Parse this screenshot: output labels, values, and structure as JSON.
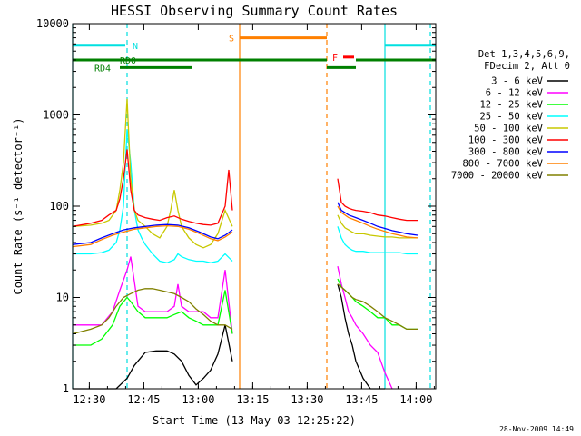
{
  "chart_data": {
    "type": "line",
    "title": "HESSI Observing Summary Count Rates",
    "xlabel": "Start Time (13-May-03 12:25:22)",
    "ylabel": "Count Rate (s⁻¹ detector⁻¹)",
    "x_unit": "minutes since 12:25:22",
    "xlim": [
      0,
      100
    ],
    "ylim": [
      1,
      10000
    ],
    "y_scale": "log",
    "x_ticks": [
      {
        "label": "12:30",
        "x": 4.6
      },
      {
        "label": "12:45",
        "x": 19.6
      },
      {
        "label": "13:00",
        "x": 34.6
      },
      {
        "label": "13:15",
        "x": 49.6
      },
      {
        "label": "13:30",
        "x": 64.6
      },
      {
        "label": "13:45",
        "x": 79.6
      },
      {
        "label": "14:00",
        "x": 94.6
      }
    ],
    "y_ticks": [
      {
        "label": "1",
        "y": 1
      },
      {
        "label": "10",
        "y": 10
      },
      {
        "label": "100",
        "y": 100
      },
      {
        "label": "1000",
        "y": 1000
      },
      {
        "label": "10000",
        "y": 10000
      }
    ],
    "legend": {
      "header": [
        "Det 1,3,4,5,6,9,",
        "FDecim 2, Att 0"
      ],
      "placement": "right"
    },
    "series": [
      {
        "name": "3 - 6 keV",
        "color": "#000000",
        "segments": [
          {
            "x": [
              0,
              8,
              12,
              15,
              17,
              20,
              23,
              26,
              28,
              30,
              32,
              34,
              36,
              38,
              40,
              42,
              44
            ],
            "y": [
              0.5,
              0.5,
              0.8,
              1.3,
              1.8,
              2.5,
              2.6,
              2.6,
              2.4,
              2.0,
              1.4,
              1.1,
              1.3,
              1.6,
              2.4,
              5,
              2
            ]
          },
          {
            "x": [
              73,
              74,
              75,
              76,
              77,
              78,
              80,
              82,
              84,
              86
            ],
            "y": [
              14,
              10,
              6,
              4,
              3,
              2,
              1.3,
              0.8,
              0.5,
              0.5
            ]
          }
        ]
      },
      {
        "name": "6 - 12 keV",
        "color": "#ff00ff",
        "segments": [
          {
            "x": [
              0,
              5,
              8,
              11,
              13,
              15,
              16,
              18,
              20,
              22,
              24,
              26,
              28,
              29,
              30,
              32,
              34,
              36,
              38,
              40,
              42,
              44
            ],
            "y": [
              5,
              5,
              5,
              7,
              12,
              20,
              28,
              8,
              7,
              7,
              7,
              7,
              8,
              14,
              8,
              7,
              7,
              7,
              6,
              6,
              20,
              4
            ]
          },
          {
            "x": [
              73,
              74,
              75,
              76,
              77,
              78,
              80,
              82,
              84,
              86,
              88
            ],
            "y": [
              22,
              14,
              10,
              7,
              6,
              5,
              4,
              3,
              2.5,
              1.5,
              0.8
            ]
          }
        ]
      },
      {
        "name": "12 - 25 keV",
        "color": "#00ff00",
        "segments": [
          {
            "x": [
              0,
              5,
              8,
              11,
              13,
              15,
              16,
              18,
              20,
              22,
              24,
              26,
              28,
              30,
              32,
              34,
              36,
              38,
              40,
              42,
              44
            ],
            "y": [
              3,
              3,
              3.5,
              5,
              8,
              10,
              9,
              7,
              6,
              6,
              6,
              6,
              6.5,
              7,
              6,
              5.5,
              5,
              5,
              5,
              12,
              4
            ]
          },
          {
            "x": [
              73,
              74,
              75,
              76,
              77,
              78,
              80,
              82,
              84,
              86,
              88,
              90,
              92,
              95
            ],
            "y": [
              16,
              13,
              12,
              11,
              10,
              9,
              8,
              7,
              6,
              6,
              5,
              5,
              4.5,
              4.5
            ]
          }
        ]
      },
      {
        "name": "25 - 50 keV",
        "color": "#00ffff",
        "segments": [
          {
            "x": [
              0,
              5,
              8,
              10,
              12,
              13,
              14,
              15,
              16,
              17,
              18,
              19,
              20,
              22,
              24,
              26,
              28,
              29,
              30,
              32,
              34,
              36,
              38,
              40,
              42,
              44
            ],
            "y": [
              30,
              30,
              31,
              33,
              40,
              55,
              100,
              700,
              300,
              90,
              55,
              45,
              38,
              30,
              25,
              24,
              26,
              30,
              28,
              26,
              25,
              25,
              24,
              25,
              30,
              25
            ]
          },
          {
            "x": [
              73,
              74,
              75,
              76,
              77,
              78,
              80,
              82,
              84,
              86,
              88,
              90,
              92,
              95
            ],
            "y": [
              60,
              45,
              38,
              35,
              33,
              32,
              32,
              31,
              31,
              31,
              31,
              31,
              30,
              30
            ]
          }
        ]
      },
      {
        "name": "50 - 100 keV",
        "color": "#c8c800",
        "segments": [
          {
            "x": [
              0,
              5,
              8,
              10,
              12,
              13,
              14,
              15,
              16,
              17,
              18,
              20,
              22,
              24,
              26,
              27,
              28,
              29,
              30,
              32,
              34,
              36,
              38,
              40,
              42,
              44
            ],
            "y": [
              60,
              62,
              65,
              70,
              90,
              150,
              300,
              1500,
              200,
              90,
              70,
              60,
              50,
              45,
              60,
              90,
              150,
              90,
              60,
              45,
              38,
              35,
              38,
              50,
              90,
              60
            ]
          },
          {
            "x": [
              73,
              74,
              75,
              76,
              77,
              78,
              80,
              82,
              84,
              86,
              88,
              90,
              92,
              95
            ],
            "y": [
              80,
              65,
              58,
              55,
              52,
              50,
              50,
              48,
              47,
              46,
              46,
              45,
              45,
              45
            ]
          }
        ]
      },
      {
        "name": "100 - 300 keV",
        "color": "#ff0000",
        "segments": [
          {
            "x": [
              0,
              5,
              8,
              10,
              12,
              13,
              14,
              15,
              16,
              17,
              18,
              20,
              22,
              24,
              26,
              28,
              30,
              32,
              34,
              36,
              38,
              40,
              42,
              43,
              44
            ],
            "y": [
              60,
              65,
              70,
              80,
              90,
              120,
              200,
              420,
              150,
              90,
              80,
              75,
              72,
              70,
              75,
              78,
              72,
              68,
              65,
              63,
              62,
              65,
              100,
              250,
              90
            ]
          },
          {
            "x": [
              73,
              74,
              75,
              76,
              77,
              78,
              80,
              82,
              84,
              86,
              88,
              90,
              92,
              95
            ],
            "y": [
              200,
              110,
              100,
              95,
              92,
              90,
              88,
              85,
              80,
              78,
              75,
              72,
              70,
              70
            ]
          }
        ]
      },
      {
        "name": "300 - 800 keV",
        "color": "#0000ff",
        "segments": [
          {
            "x": [
              0,
              5,
              8,
              11,
              14,
              17,
              20,
              23,
              26,
              29,
              32,
              35,
              38,
              40,
              42,
              44
            ],
            "y": [
              38,
              40,
              45,
              50,
              55,
              58,
              60,
              62,
              63,
              62,
              58,
              52,
              46,
              44,
              48,
              55
            ]
          },
          {
            "x": [
              73,
              74,
              75,
              76,
              78,
              80,
              82,
              84,
              86,
              88,
              90,
              92,
              95
            ],
            "y": [
              110,
              90,
              85,
              80,
              75,
              70,
              65,
              60,
              57,
              54,
              52,
              50,
              48
            ]
          }
        ]
      },
      {
        "name": "800 - 7000 keV",
        "color": "#ff8000",
        "segments": [
          {
            "x": [
              0,
              5,
              8,
              11,
              14,
              17,
              20,
              23,
              26,
              29,
              32,
              35,
              38,
              40,
              42,
              44
            ],
            "y": [
              36,
              38,
              43,
              48,
              52,
              56,
              58,
              60,
              61,
              60,
              56,
              50,
              44,
              42,
              46,
              52
            ]
          },
          {
            "x": [
              73,
              74,
              75,
              76,
              78,
              80,
              82,
              84,
              86,
              88,
              90,
              92,
              95
            ],
            "y": [
              100,
              85,
              80,
              75,
              70,
              65,
              60,
              56,
              53,
              50,
              48,
              46,
              45
            ]
          }
        ]
      },
      {
        "name": "7000 - 20000 keV",
        "color": "#808000",
        "segments": [
          {
            "x": [
              0,
              5,
              8,
              10,
              12,
              14,
              16,
              18,
              20,
              22,
              24,
              26,
              28,
              30,
              32,
              34,
              36,
              38,
              40,
              42,
              44
            ],
            "y": [
              4,
              4.5,
              5,
              6,
              8,
              10,
              11,
              12,
              12.5,
              12.5,
              12,
              11.5,
              11,
              10,
              9,
              7.5,
              6.5,
              5.5,
              5,
              5,
              4.5
            ]
          },
          {
            "x": [
              73,
              74,
              75,
              76,
              77,
              78,
              80,
              82,
              84,
              86,
              88,
              90,
              92,
              95
            ],
            "y": [
              14,
              13,
              12,
              11,
              10,
              9.5,
              9,
              8,
              7,
              6,
              5.5,
              5,
              4.5,
              4.5
            ]
          }
        ]
      }
    ],
    "status_bars": [
      {
        "label": "N",
        "color": "#00e0e0",
        "y": 5800,
        "x_ranges": [
          [
            0,
            14.5
          ],
          [
            86,
            100
          ]
        ]
      },
      {
        "label": "S",
        "color": "#ff8000",
        "y": 7000,
        "x_ranges": [
          [
            46,
            70
          ]
        ]
      },
      {
        "label": "F",
        "color": "#ff0000",
        "y": 4300,
        "x_ranges": [
          [
            74.5,
            77.5
          ]
        ]
      },
      {
        "label": "RD0",
        "color": "#008000",
        "y": 4000,
        "x_ranges": [
          [
            0,
            70
          ],
          [
            78,
            100
          ]
        ]
      },
      {
        "label": "RD4",
        "color": "#008000",
        "y": 3300,
        "x_ranges": [
          [
            13,
            33
          ],
          [
            70,
            78
          ]
        ]
      }
    ],
    "vertical_markers": [
      {
        "x": 0,
        "color": "#00e0e0",
        "style": "solid"
      },
      {
        "x": 15,
        "color": "#00e0e0",
        "style": "dashed"
      },
      {
        "x": 46,
        "color": "#ff8000",
        "style": "solid"
      },
      {
        "x": 70,
        "color": "#ff8000",
        "style": "dashed"
      },
      {
        "x": 86,
        "color": "#00e0e0",
        "style": "solid"
      },
      {
        "x": 98.5,
        "color": "#00e0e0",
        "style": "dashed"
      }
    ],
    "footer_timestamp": "28-Nov-2009 14:49"
  }
}
